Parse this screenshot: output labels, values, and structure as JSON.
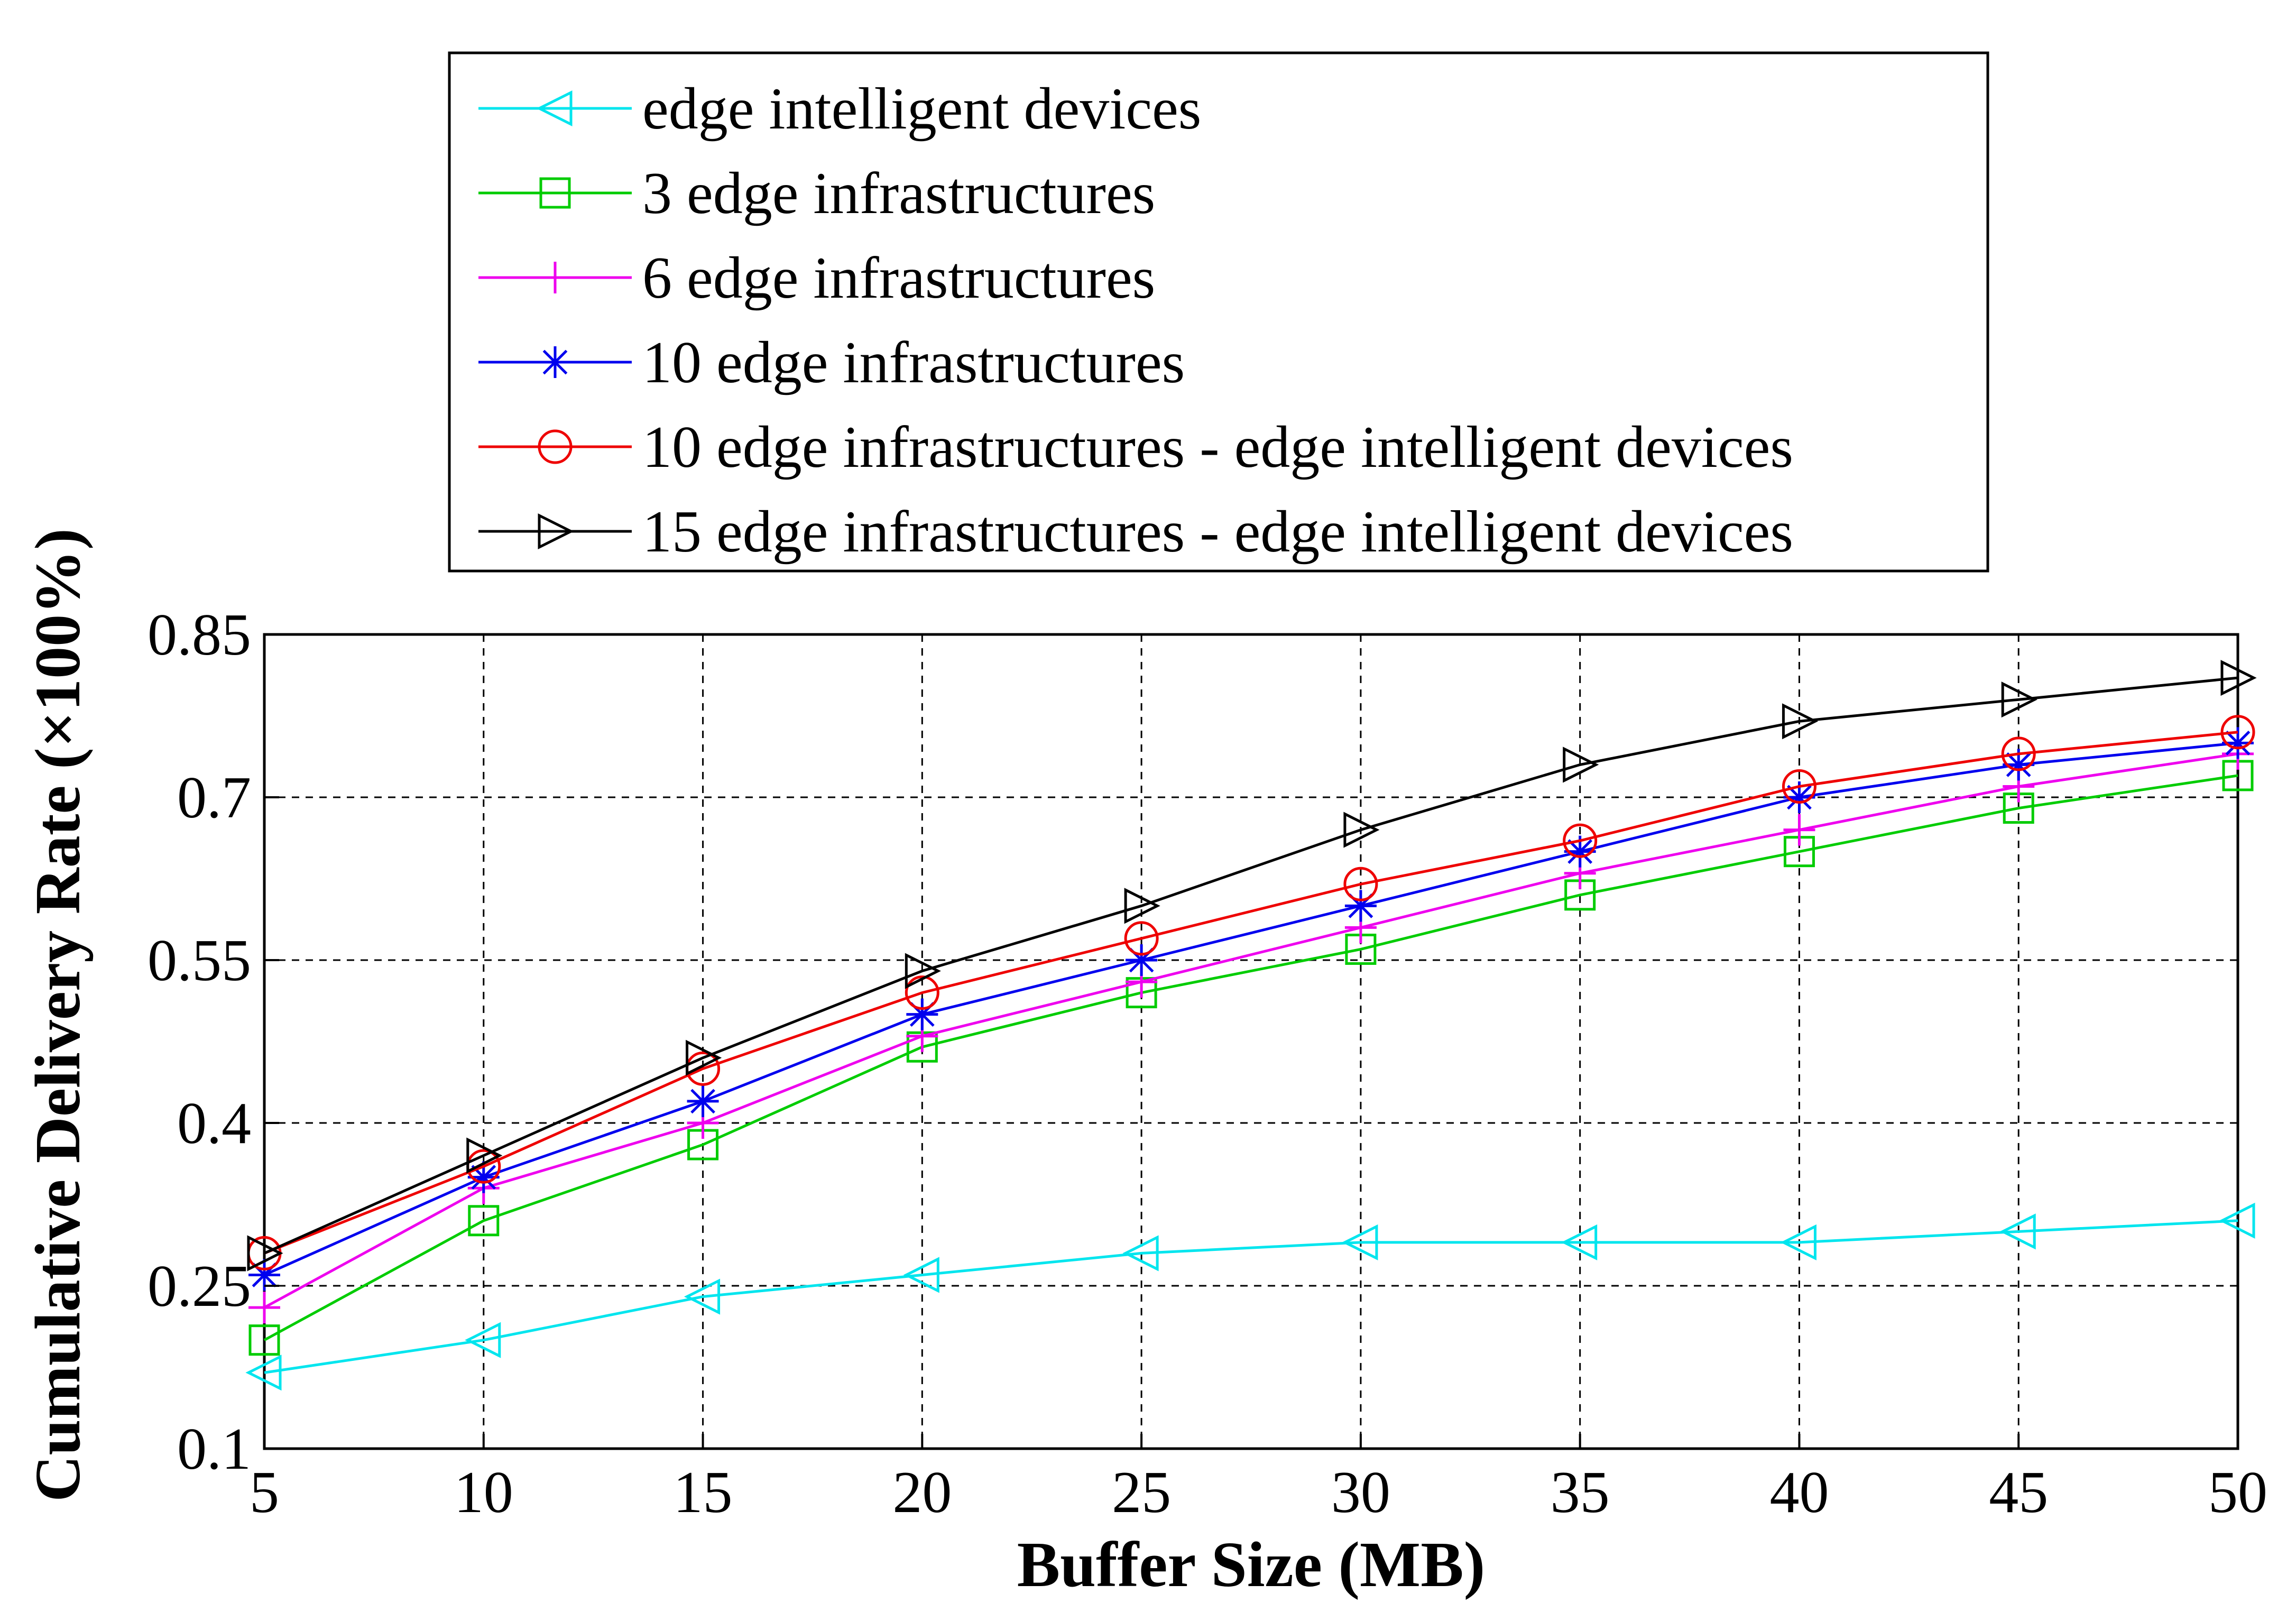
{
  "chart_data": {
    "type": "line",
    "title": "",
    "xlabel": "Buffer Size (MB)",
    "ylabel": "Cumulative Delivery Rate (×100%)",
    "xlim": [
      5,
      50
    ],
    "ylim": [
      0.1,
      0.85
    ],
    "x": [
      5,
      10,
      15,
      20,
      25,
      30,
      35,
      40,
      45,
      50
    ],
    "xticks": [
      "5",
      "10",
      "15",
      "20",
      "25",
      "30",
      "35",
      "40",
      "45",
      "50"
    ],
    "yticks": [
      0.1,
      0.25,
      0.4,
      0.55,
      0.7,
      0.85
    ],
    "ytick_labels": [
      "0.1",
      "0.25",
      "0.4",
      "0.55",
      "0.7",
      "0.85"
    ],
    "grid": true,
    "legend_position": "top",
    "series": [
      {
        "name": "edge intelligent devices",
        "color": "#00e5ee",
        "marker": "triangle-left",
        "values": [
          0.17,
          0.2,
          0.24,
          0.26,
          0.28,
          0.29,
          0.29,
          0.29,
          0.3,
          0.31
        ]
      },
      {
        "name": "3 edge infrastructures",
        "color": "#00cc00",
        "marker": "square",
        "values": [
          0.2,
          0.31,
          0.38,
          0.47,
          0.52,
          0.56,
          0.61,
          0.65,
          0.69,
          0.72
        ]
      },
      {
        "name": "6 edge infrastructures",
        "color": "#ee00ee",
        "marker": "plus",
        "values": [
          0.23,
          0.34,
          0.4,
          0.48,
          0.53,
          0.58,
          0.63,
          0.67,
          0.71,
          0.74
        ]
      },
      {
        "name": "10 edge infrastructures",
        "color": "#0000ee",
        "marker": "star",
        "values": [
          0.26,
          0.35,
          0.42,
          0.5,
          0.55,
          0.6,
          0.65,
          0.7,
          0.73,
          0.75
        ]
      },
      {
        "name": "10 edge infrastructures - edge intelligent devices",
        "color": "#ee0000",
        "marker": "circle",
        "values": [
          0.28,
          0.36,
          0.45,
          0.52,
          0.57,
          0.62,
          0.66,
          0.71,
          0.74,
          0.76
        ]
      },
      {
        "name": "15 edge infrastructures - edge intelligent devices",
        "color": "#000000",
        "marker": "triangle-right",
        "values": [
          0.28,
          0.37,
          0.46,
          0.54,
          0.6,
          0.67,
          0.73,
          0.77,
          0.79,
          0.81
        ]
      }
    ]
  }
}
